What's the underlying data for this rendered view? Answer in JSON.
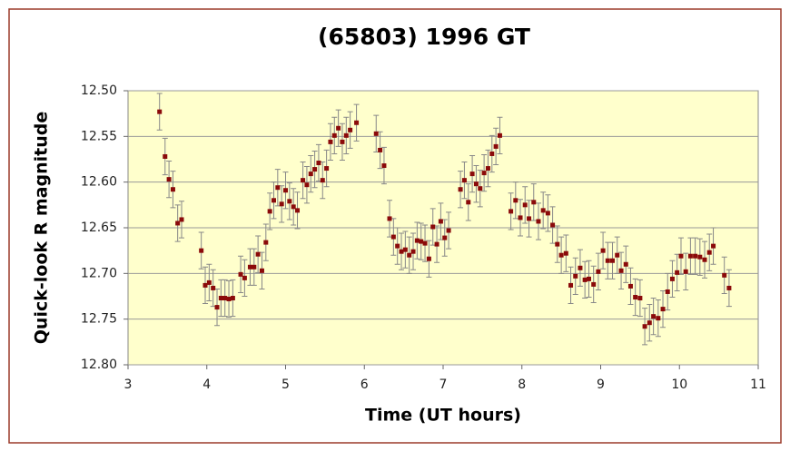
{
  "chart_data": {
    "type": "scatter",
    "title": "(65803) 1996 GT",
    "x_label": "Time (UT hours)",
    "y_label": "Quick-look R magnitude",
    "xlim": [
      3,
      11
    ],
    "xticks": [
      3,
      4,
      5,
      6,
      7,
      8,
      9,
      10,
      11
    ],
    "ylim": [
      12.5,
      12.8
    ],
    "y_reversed": true,
    "yticks": [
      {
        "value": 12.5,
        "label": "12.50"
      },
      {
        "value": 12.55,
        "label": "12.55"
      },
      {
        "value": 12.6,
        "label": "12.60"
      },
      {
        "value": 12.65,
        "label": "12.65"
      },
      {
        "value": 12.7,
        "label": "12.70"
      },
      {
        "value": 12.75,
        "label": "12.75"
      },
      {
        "value": 12.8,
        "label": "12.80"
      }
    ],
    "grid": true,
    "color": "#8b0a0a",
    "error_color": "#888888",
    "background": "#ffffcc",
    "error": 0.02,
    "x": [
      3.4,
      3.47,
      3.52,
      3.57,
      3.63,
      3.68,
      3.93,
      3.98,
      4.03,
      4.08,
      4.13,
      4.18,
      4.23,
      4.28,
      4.33,
      4.43,
      4.48,
      4.55,
      4.6,
      4.65,
      4.7,
      4.75,
      4.8,
      4.85,
      4.9,
      4.95,
      5.0,
      5.05,
      5.1,
      5.15,
      5.22,
      5.27,
      5.32,
      5.37,
      5.42,
      5.47,
      5.52,
      5.57,
      5.62,
      5.67,
      5.72,
      5.77,
      5.82,
      5.9,
      6.15,
      6.2,
      6.25,
      6.32,
      6.37,
      6.42,
      6.47,
      6.52,
      6.57,
      6.62,
      6.67,
      6.72,
      6.77,
      6.82,
      6.87,
      6.92,
      6.97,
      7.02,
      7.07,
      7.22,
      7.27,
      7.32,
      7.37,
      7.42,
      7.47,
      7.52,
      7.57,
      7.62,
      7.67,
      7.72,
      7.86,
      7.92,
      7.98,
      8.04,
      8.09,
      8.15,
      8.21,
      8.27,
      8.33,
      8.39,
      8.45,
      8.5,
      8.56,
      8.62,
      8.68,
      8.74,
      8.8,
      8.85,
      8.91,
      8.97,
      9.03,
      9.09,
      9.15,
      9.21,
      9.26,
      9.32,
      9.38,
      9.44,
      9.5,
      9.56,
      9.62,
      9.67,
      9.73,
      9.79,
      9.85,
      9.91,
      9.97,
      10.02,
      10.08,
      10.14,
      10.2,
      10.26,
      10.32,
      10.38,
      10.43,
      10.57,
      10.63
    ],
    "values": [
      12.523,
      12.572,
      12.597,
      12.608,
      12.645,
      12.641,
      12.675,
      12.713,
      12.71,
      12.716,
      12.737,
      12.727,
      12.727,
      12.728,
      12.727,
      12.701,
      12.705,
      12.693,
      12.693,
      12.679,
      12.697,
      12.666,
      12.632,
      12.62,
      12.606,
      12.624,
      12.609,
      12.621,
      12.627,
      12.631,
      12.598,
      12.603,
      12.591,
      12.586,
      12.579,
      12.598,
      12.585,
      12.556,
      12.549,
      12.541,
      12.556,
      12.549,
      12.543,
      12.535,
      12.547,
      12.565,
      12.582,
      12.64,
      12.66,
      12.67,
      12.676,
      12.674,
      12.68,
      12.676,
      12.664,
      12.665,
      12.667,
      12.684,
      12.649,
      12.668,
      12.643,
      12.661,
      12.653,
      12.608,
      12.598,
      12.622,
      12.591,
      12.602,
      12.607,
      12.59,
      12.585,
      12.569,
      12.561,
      12.549,
      12.632,
      12.62,
      12.639,
      12.625,
      12.64,
      12.622,
      12.643,
      12.631,
      12.634,
      12.647,
      12.668,
      12.68,
      12.678,
      12.713,
      12.703,
      12.694,
      12.707,
      12.706,
      12.712,
      12.698,
      12.675,
      12.686,
      12.686,
      12.68,
      12.697,
      12.69,
      12.714,
      12.726,
      12.727,
      12.758,
      12.754,
      12.747,
      12.749,
      12.739,
      12.72,
      12.706,
      12.699,
      12.681,
      12.698,
      12.681,
      12.681,
      12.682,
      12.685,
      12.677,
      12.67,
      12.702,
      12.716
    ]
  }
}
